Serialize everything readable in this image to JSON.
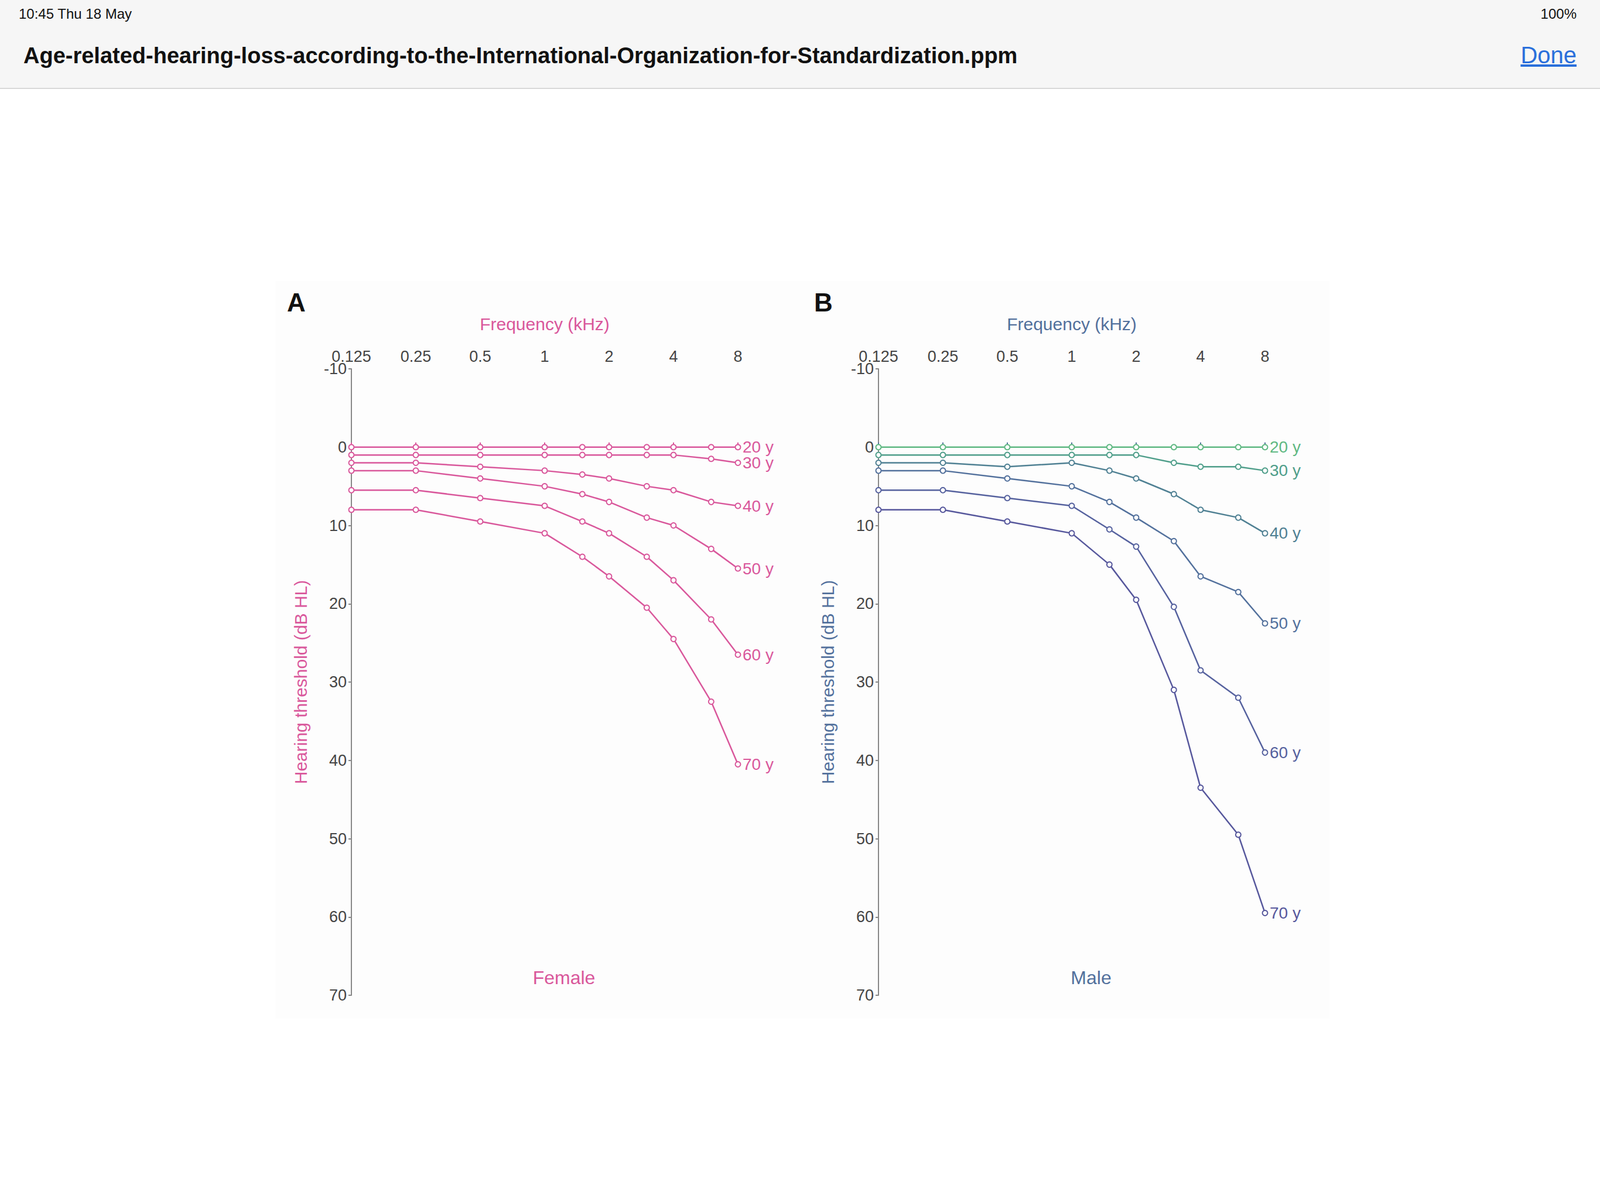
{
  "screen": {
    "time": "10:45  Thu 18 May",
    "battery": "100%",
    "file_name": "Age-related-hearing-loss-according-to-the-International-Organization-for-Standardization.ppm",
    "button": "Done"
  },
  "chart_data": [
    {
      "type": "line",
      "title": "A",
      "x_label": "Frequency (kHz)",
      "y_label": "Hearing threshold (dB HL)",
      "annotation": "Female",
      "log": "x",
      "grid": false,
      "marker": "circle",
      "line_style": "solid",
      "x": [
        0.125,
        0.25,
        0.5,
        1,
        1.5,
        2,
        3,
        4,
        6,
        8
      ],
      "xlim": [
        0.125,
        8
      ],
      "xticks": [
        0.125,
        0.25,
        0.5,
        1,
        2,
        4,
        8
      ],
      "ylim": [
        -10,
        70
      ],
      "yticks": [
        -10,
        0,
        10,
        20,
        30,
        40,
        50,
        60,
        70
      ],
      "series": [
        {
          "name": "20 y",
          "color": "#d9579b",
          "values": [
            0,
            0,
            0,
            0,
            0,
            0,
            0,
            0,
            0,
            0
          ]
        },
        {
          "name": "30 y",
          "color": "#d9579b",
          "values": [
            1,
            1,
            1,
            1,
            1,
            1,
            1,
            1,
            1.5,
            2
          ]
        },
        {
          "name": "40 y",
          "color": "#d9579b",
          "values": [
            2,
            2,
            2.5,
            3,
            3.5,
            4,
            5,
            5.5,
            7,
            7.5
          ]
        },
        {
          "name": "50 y",
          "color": "#d9579b",
          "values": [
            3,
            3,
            4,
            5,
            6,
            7,
            9,
            10,
            13,
            15.5
          ]
        },
        {
          "name": "60 y",
          "color": "#d9579b",
          "values": [
            5.5,
            5.5,
            6.5,
            7.5,
            9.5,
            11,
            14,
            17,
            22,
            26.5
          ]
        },
        {
          "name": "70 y",
          "color": "#d9579b",
          "values": [
            8,
            8,
            9.5,
            11,
            14,
            16.5,
            20.5,
            24.5,
            32.5,
            40.5
          ]
        }
      ]
    },
    {
      "type": "line",
      "title": "B",
      "x_label": "Frequency (kHz)",
      "y_label": "Hearing threshold (dB HL)",
      "annotation": "Male",
      "log": "x",
      "grid": false,
      "marker": "circle",
      "line_style": "solid",
      "x": [
        0.125,
        0.25,
        0.5,
        1,
        1.5,
        2,
        3,
        4,
        6,
        8
      ],
      "xlim": [
        0.125,
        8
      ],
      "xticks": [
        0.125,
        0.25,
        0.5,
        1,
        2,
        4,
        8
      ],
      "ylim": [
        -10,
        70
      ],
      "yticks": [
        -10,
        0,
        10,
        20,
        30,
        40,
        50,
        60,
        70
      ],
      "series": [
        {
          "name": "20 y",
          "color": "#5fb882",
          "values": [
            0,
            0,
            0,
            0,
            0,
            0,
            0,
            0,
            0,
            0
          ]
        },
        {
          "name": "30 y",
          "color": "#4f9e8a",
          "values": [
            1,
            1,
            1,
            1,
            1,
            1,
            2,
            2.5,
            2.5,
            3
          ]
        },
        {
          "name": "40 y",
          "color": "#4f8093",
          "values": [
            2,
            2,
            2.5,
            2,
            3,
            4,
            6,
            8,
            9,
            11
          ]
        },
        {
          "name": "50 y",
          "color": "#52709c",
          "values": [
            3,
            3,
            4,
            5,
            7,
            9,
            12,
            16.5,
            18.5,
            22.5
          ]
        },
        {
          "name": "60 y",
          "color": "#55619e",
          "values": [
            5.5,
            5.5,
            6.5,
            7.5,
            10.5,
            12.7,
            20.4,
            28.5,
            32,
            39
          ]
        },
        {
          "name": "70 y",
          "color": "#56579c",
          "values": [
            8,
            8,
            9.5,
            11,
            15,
            19.5,
            31,
            43.5,
            49.5,
            59.5
          ]
        }
      ]
    }
  ]
}
